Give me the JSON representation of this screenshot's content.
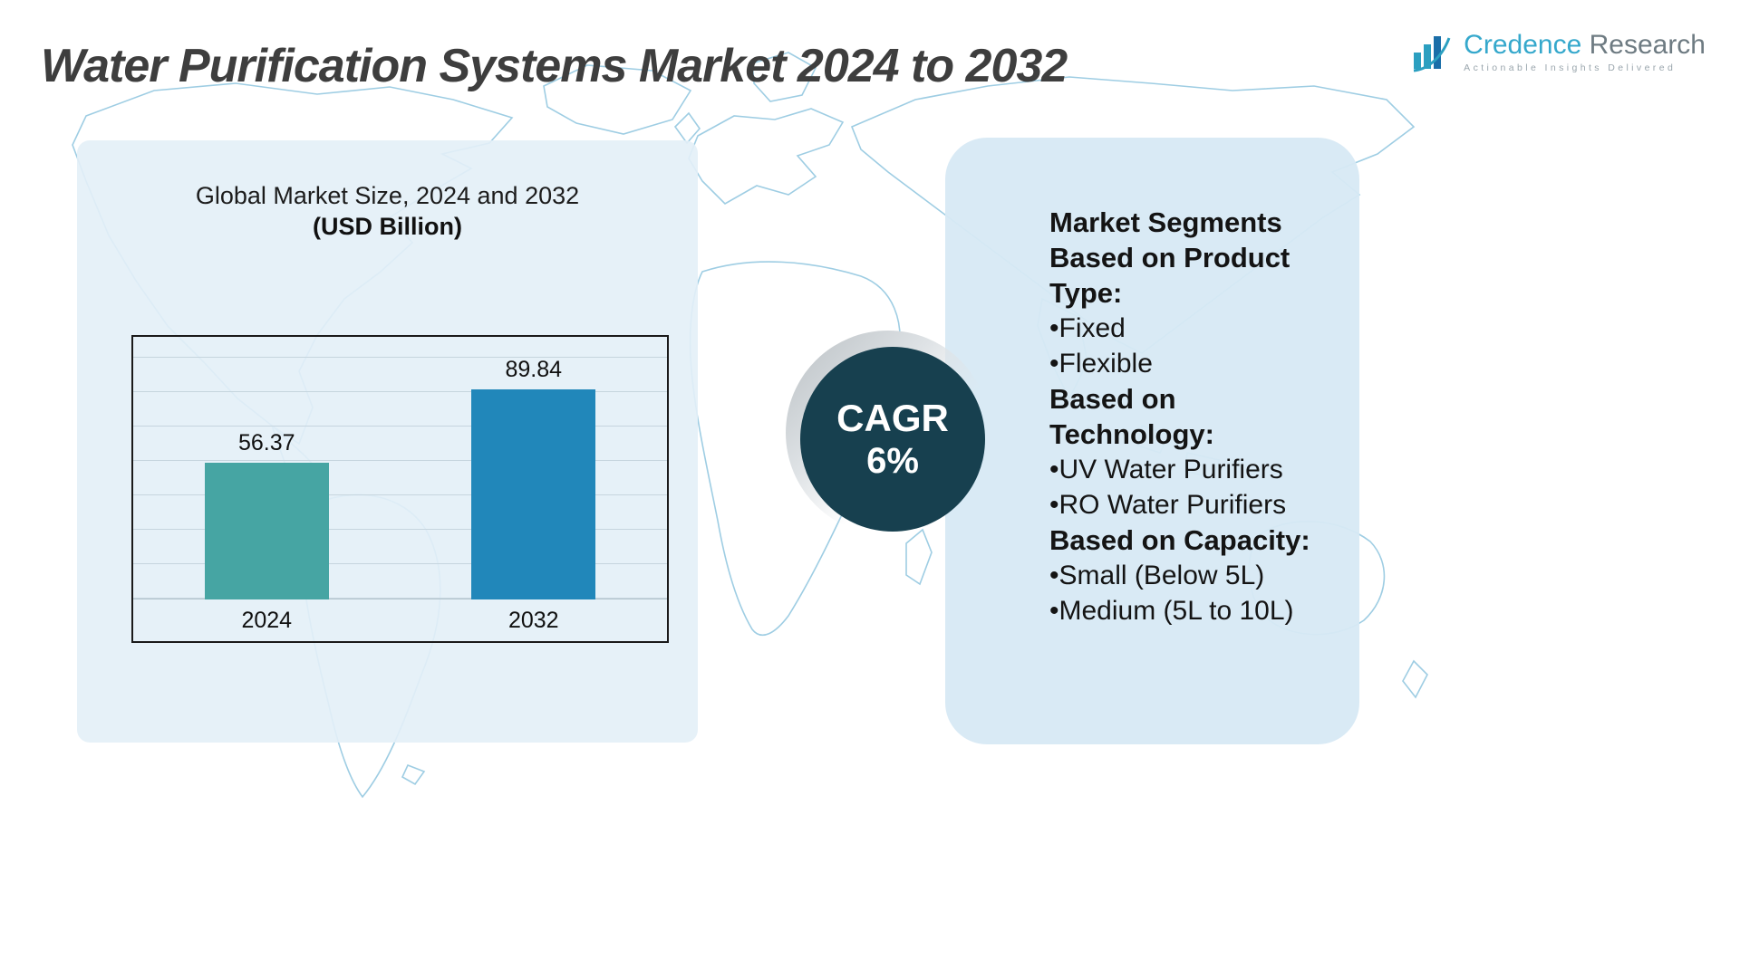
{
  "header": {
    "title": "Water Purification Systems Market 2024 to 2032",
    "logo": {
      "brand_primary": "Credence",
      "brand_secondary": "Research",
      "tagline": "Actionable Insights Delivered"
    }
  },
  "chart_panel": {
    "title": "Global Market Size, 2024 and 2032",
    "subtitle": "(USD Billion)"
  },
  "chart_data": {
    "type": "bar",
    "title": "Global Market Size, 2024 and 2032",
    "subtitle": "(USD Billion)",
    "categories": [
      "2024",
      "2032"
    ],
    "values": [
      56.37,
      89.84
    ],
    "bar_colors": [
      "#46a5a3",
      "#2187ba"
    ],
    "ylim": [
      0,
      100
    ],
    "grid": true,
    "legend_position": "none",
    "xlabel": "",
    "ylabel": ""
  },
  "cagr_badge": {
    "label": "CAGR",
    "value": "6%"
  },
  "segments_panel": {
    "items": [
      {
        "type": "heading",
        "text": "Market Segments Based on Product Type:"
      },
      {
        "type": "bullet",
        "text": "•Fixed"
      },
      {
        "type": "bullet",
        "text": "•Flexible"
      },
      {
        "type": "heading",
        "text": "Based on Technology:"
      },
      {
        "type": "bullet",
        "text": "•UV Water Purifiers"
      },
      {
        "type": "bullet",
        "text": "•RO Water Purifiers"
      },
      {
        "type": "heading",
        "text": "Based on Capacity:"
      },
      {
        "type": "bullet",
        "text": "•Small (Below 5L)"
      },
      {
        "type": "bullet",
        "text": "•Medium (5L to 10L)"
      }
    ]
  },
  "colors": {
    "bar_2024": "#46a5a3",
    "bar_2032": "#2187ba",
    "cagr_circle": "#17404f",
    "map_line": "#9ecde3"
  }
}
